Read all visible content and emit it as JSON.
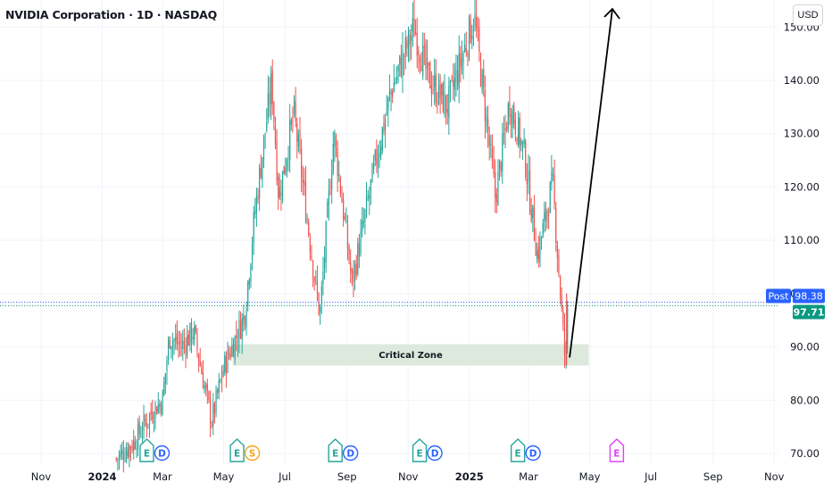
{
  "header": {
    "title": "NVIDIA Corporation · 1D · NASDAQ",
    "currency_button": "USD"
  },
  "colors": {
    "up": "#26a69a",
    "down": "#ef5350",
    "grid": "#f0f3fa",
    "zone_fill": "#dde9dc",
    "last_price_line": "#089981",
    "post_line": "#2962ff",
    "event_earnings": "#26a69a",
    "event_dividend": "#2962ff",
    "event_split": "#f7a21b",
    "event_future": "#e040fb"
  },
  "chart_data": {
    "type": "candlestick",
    "y_ticks": [
      "70.00",
      "80.00",
      "90.00",
      "100.00",
      "110.00",
      "120.00",
      "130.00",
      "140.00",
      "150.00"
    ],
    "y_range": [
      68,
      152
    ],
    "x_ticks": [
      {
        "label": "Nov",
        "bold": false
      },
      {
        "label": "2024",
        "bold": true
      },
      {
        "label": "Mar",
        "bold": false
      },
      {
        "label": "May",
        "bold": false
      },
      {
        "label": "Jul",
        "bold": false
      },
      {
        "label": "Sep",
        "bold": false
      },
      {
        "label": "Nov",
        "bold": false
      },
      {
        "label": "2025",
        "bold": true
      },
      {
        "label": "Mar",
        "bold": false
      },
      {
        "label": "May",
        "bold": false
      },
      {
        "label": "Jul",
        "bold": false
      },
      {
        "label": "Sep",
        "bold": false
      },
      {
        "label": "Nov",
        "bold": false
      }
    ],
    "price_path": [
      [
        "2024-01-15",
        69
      ],
      [
        "2024-02-01",
        72
      ],
      [
        "2024-02-20",
        78
      ],
      [
        "2024-03-01",
        80
      ],
      [
        "2024-03-08",
        92
      ],
      [
        "2024-03-20",
        90
      ],
      [
        "2024-04-01",
        93
      ],
      [
        "2024-04-19",
        76
      ],
      [
        "2024-05-01",
        86
      ],
      [
        "2024-05-22",
        96
      ],
      [
        "2024-06-01",
        115
      ],
      [
        "2024-06-18",
        140
      ],
      [
        "2024-06-25",
        118
      ],
      [
        "2024-07-10",
        134
      ],
      [
        "2024-07-30",
        104
      ],
      [
        "2024-08-05",
        96
      ],
      [
        "2024-08-19",
        130
      ],
      [
        "2024-09-06",
        102
      ],
      [
        "2024-09-30",
        125
      ],
      [
        "2024-10-15",
        138
      ],
      [
        "2024-11-07",
        150
      ],
      [
        "2024-11-20",
        141
      ],
      [
        "2024-12-10",
        135
      ],
      [
        "2025-01-06",
        152
      ],
      [
        "2025-01-27",
        118
      ],
      [
        "2025-02-10",
        136
      ],
      [
        "2025-02-25",
        126
      ],
      [
        "2025-03-10",
        107
      ],
      [
        "2025-03-25",
        121
      ],
      [
        "2025-04-04",
        94
      ],
      [
        "2025-04-07",
        86.6
      ],
      [
        "2025-04-09",
        98.4
      ]
    ],
    "events": [
      {
        "date": "2024-02-22",
        "labels": [
          "E",
          "D"
        ]
      },
      {
        "date": "2024-05-22",
        "labels": [
          "E",
          "S"
        ]
      },
      {
        "date": "2024-08-28",
        "labels": [
          "E",
          "D"
        ]
      },
      {
        "date": "2024-11-20",
        "labels": [
          "E",
          "D"
        ]
      },
      {
        "date": "2025-02-26",
        "labels": [
          "E",
          "D"
        ]
      },
      {
        "date": "2025-05-28",
        "labels": [
          "E"
        ]
      }
    ],
    "annotations": {
      "zone_label": "Critical Zone",
      "zone_price_range": [
        86.5,
        90.5
      ],
      "arrow_from_price": 88,
      "arrow_to_price": 152
    },
    "post_label": "Post",
    "post_price": "98.38",
    "last_price": "97.71"
  }
}
